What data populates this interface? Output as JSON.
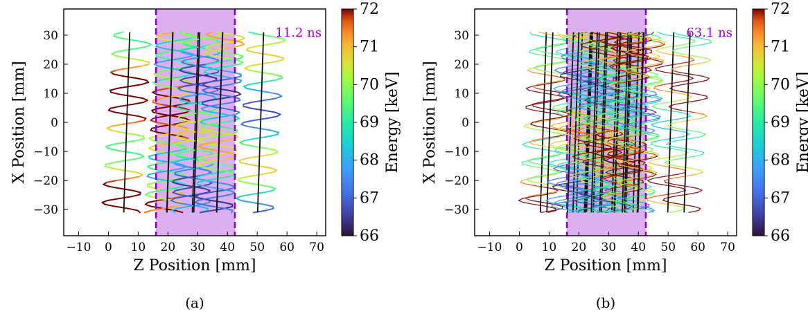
{
  "chart_data": [
    {
      "type": "line",
      "panel_label": "(a)",
      "xlabel": "Z Position [mm]",
      "ylabel": "X Position [mm]",
      "xlim": [
        -15,
        73
      ],
      "ylim": [
        -39,
        39
      ],
      "xticks": [
        -10,
        0,
        10,
        20,
        30,
        40,
        50,
        60,
        70
      ],
      "yticks": [
        -30,
        -20,
        -10,
        0,
        10,
        20,
        30
      ],
      "shaded_region": {
        "x_start": 16,
        "x_end": 42.5,
        "color": "#d8a6f0",
        "line_color": "#8a00c8"
      },
      "annotation": {
        "text": "11.2 ns",
        "color": "#9a00c8"
      },
      "colorbar": {
        "label": "Energy [keV]",
        "min": 66,
        "max": 72,
        "ticks": [
          66,
          67,
          68,
          69,
          70,
          71,
          72
        ],
        "colormap": "turbo"
      },
      "trajectories": "helical electron paths between X = -31 and X = 31 mm, colored by energy; black segments at turning points",
      "grid": false
    },
    {
      "type": "line",
      "panel_label": "(b)",
      "xlabel": "Z Position [mm]",
      "ylabel": "X Position [mm]",
      "xlim": [
        -15,
        73
      ],
      "ylim": [
        -39,
        39
      ],
      "xticks": [
        -10,
        0,
        10,
        20,
        30,
        40,
        50,
        60,
        70
      ],
      "yticks": [
        -30,
        -20,
        -10,
        0,
        10,
        20,
        30
      ],
      "shaded_region": {
        "x_start": 16,
        "x_end": 42.5,
        "color": "#d8a6f0",
        "line_color": "#8a00c8"
      },
      "annotation": {
        "text": "63.1 ns",
        "color": "#9a00c8"
      },
      "colorbar": {
        "label": "Energy [keV]",
        "min": 66,
        "max": 72,
        "ticks": [
          66,
          67,
          68,
          69,
          70,
          71,
          72
        ],
        "colormap": "turbo"
      },
      "trajectories": "dense helical electron paths accumulated over longer time, colored by energy",
      "grid": false
    }
  ]
}
